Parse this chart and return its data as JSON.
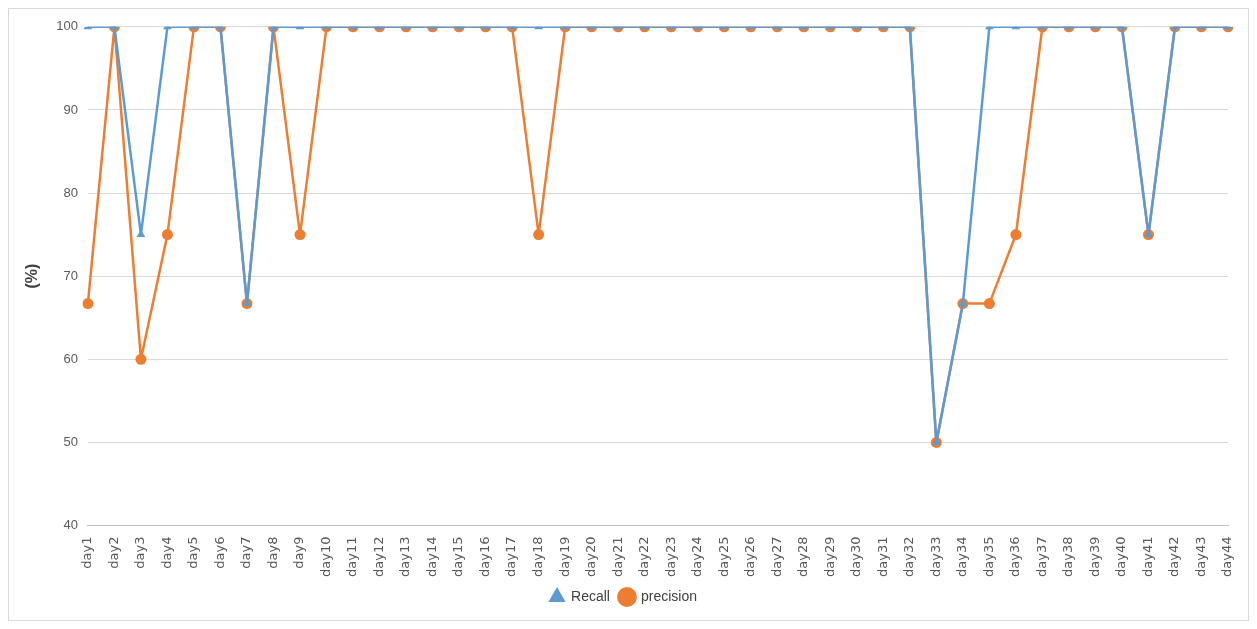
{
  "chart_data": {
    "type": "line",
    "ylabel": "(%)",
    "categories": [
      "day1",
      "day2",
      "day3",
      "day4",
      "day5",
      "day6",
      "day7",
      "day8",
      "day9",
      "day10",
      "day11",
      "day12",
      "day13",
      "day14",
      "day15",
      "day16",
      "day17",
      "day18",
      "day19",
      "day20",
      "day21",
      "day22",
      "day23",
      "day24",
      "day25",
      "day26",
      "day27",
      "day28",
      "day29",
      "day30",
      "day31",
      "day32",
      "day33",
      "day34",
      "day35",
      "day36",
      "day37",
      "day38",
      "day39",
      "day40",
      "day41",
      "day42",
      "day43",
      "day44"
    ],
    "series": [
      {
        "name": "precision",
        "color": "#ed7d31",
        "marker": "circle",
        "values": [
          66.7,
          100,
          60,
          75,
          100,
          100,
          66.7,
          100,
          75,
          100,
          100,
          100,
          100,
          100,
          100,
          100,
          100,
          75,
          100,
          100,
          100,
          100,
          100,
          100,
          100,
          100,
          100,
          100,
          100,
          100,
          100,
          100,
          50,
          66.7,
          66.7,
          75,
          100,
          100,
          100,
          100,
          75,
          100,
          100,
          100
        ]
      },
      {
        "name": "Recall",
        "color": "#5b9bd5",
        "marker": "triangle",
        "values": [
          100,
          100,
          75,
          100,
          100,
          100,
          66.7,
          100,
          100,
          100,
          100,
          100,
          100,
          100,
          100,
          100,
          100,
          100,
          100,
          100,
          100,
          100,
          100,
          100,
          100,
          100,
          100,
          100,
          100,
          100,
          100,
          100,
          50,
          66.7,
          100,
          100,
          100,
          100,
          100,
          100,
          75,
          100,
          100,
          100
        ]
      }
    ],
    "ylim": [
      40,
      100
    ],
    "yticks": [
      40,
      50,
      60,
      70,
      80,
      90,
      100
    ],
    "grid": "y",
    "legend": "bottom",
    "line_style": "solid"
  }
}
